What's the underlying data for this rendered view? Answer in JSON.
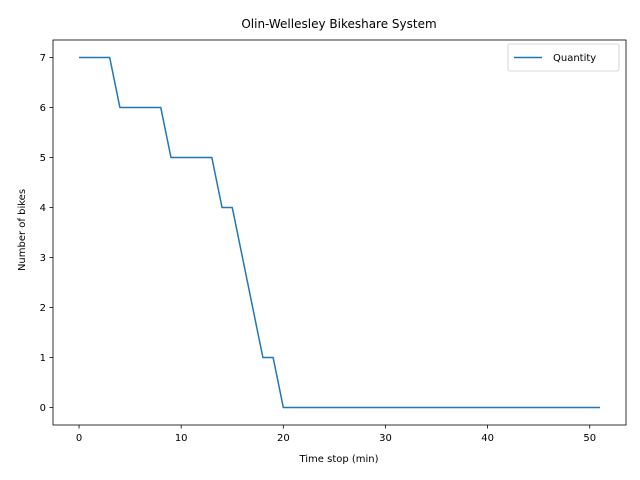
{
  "chart_data": {
    "type": "line",
    "title": "Olin-Wellesley Bikeshare System",
    "xlabel": "Time stop (min)",
    "ylabel": "Number of bikes",
    "xlim": [
      -2.55,
      53.55
    ],
    "ylim": [
      -0.35,
      7.35
    ],
    "xticks": [
      0,
      10,
      20,
      30,
      40,
      50
    ],
    "yticks": [
      0,
      1,
      2,
      3,
      4,
      5,
      6,
      7
    ],
    "grid": false,
    "legend": {
      "position": "top-right"
    },
    "series": [
      {
        "name": "Quantity",
        "color": "#1f77b4",
        "x": [
          0,
          1,
          2,
          3,
          4,
          5,
          6,
          7,
          8,
          9,
          10,
          11,
          12,
          13,
          14,
          15,
          16,
          17,
          18,
          19,
          20,
          21,
          22,
          23,
          24,
          25,
          26,
          27,
          28,
          29,
          30,
          31,
          32,
          33,
          34,
          35,
          36,
          37,
          38,
          39,
          40,
          41,
          42,
          43,
          44,
          45,
          46,
          47,
          48,
          49,
          50,
          51
        ],
        "y": [
          7,
          7,
          7,
          7,
          6,
          6,
          6,
          6,
          6,
          5,
          5,
          5,
          5,
          5,
          4,
          4,
          3,
          2,
          1,
          1,
          0,
          0,
          0,
          0,
          0,
          0,
          0,
          0,
          0,
          0,
          0,
          0,
          0,
          0,
          0,
          0,
          0,
          0,
          0,
          0,
          0,
          0,
          0,
          0,
          0,
          0,
          0,
          0,
          0,
          0,
          0,
          0
        ]
      }
    ]
  }
}
